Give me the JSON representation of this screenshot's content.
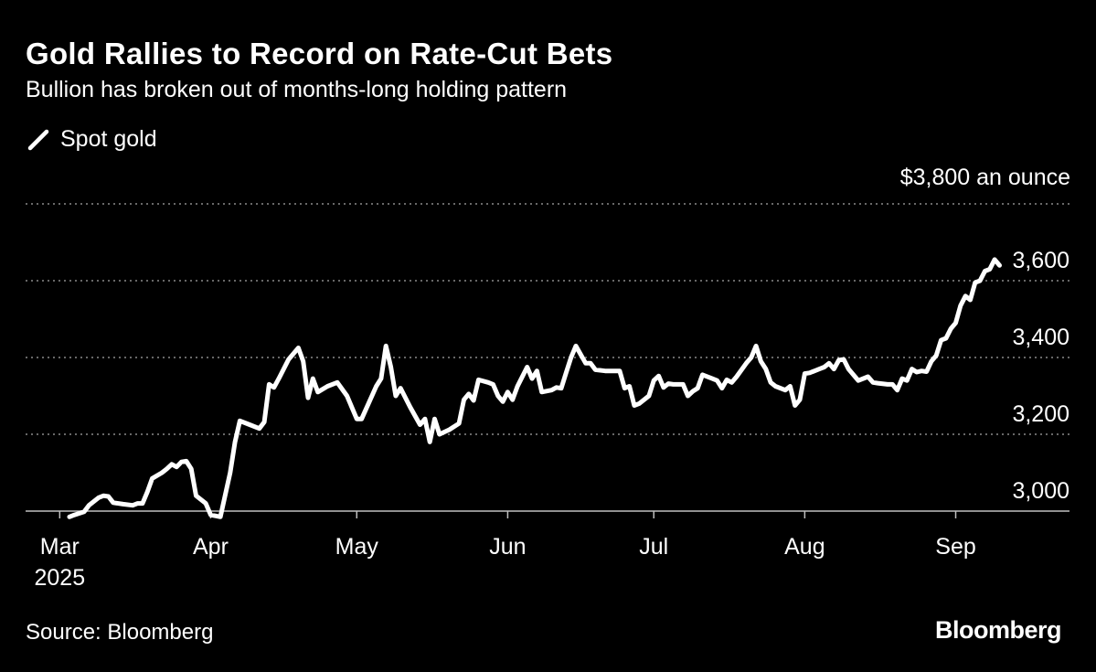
{
  "header": {
    "title": "Gold Rallies to Record on Rate-Cut Bets",
    "subtitle": "Bullion has broken out of months-long holding pattern"
  },
  "legend": {
    "label": "Spot gold",
    "color": "#ffffff"
  },
  "unit_label": "$3,800 an ounce",
  "footer": {
    "source": "Source: Bloomberg",
    "brand": "Bloomberg"
  },
  "colors": {
    "background": "#000000",
    "line": "#ffffff",
    "grid": "#8a8a8a",
    "text": "#ffffff"
  },
  "chart_data": {
    "type": "line",
    "title": "Gold Rallies to Record on Rate-Cut Bets",
    "subtitle": "Bullion has broken out of months-long holding pattern",
    "ylabel": "",
    "xlabel": "",
    "ylim": [
      3000,
      3800
    ],
    "yticks": [
      3000,
      3200,
      3400,
      3600,
      3800
    ],
    "ytick_labels": [
      "3,000",
      "3,200",
      "3,400",
      "3,600",
      "$3,800 an ounce"
    ],
    "y_axis_side": "right",
    "grid": "horizontal dotted",
    "legend_position": "top-left",
    "xlim": [
      "2025-02-28",
      "2025-09-30"
    ],
    "xticks": [
      {
        "date": "2025-03-01",
        "label": "Mar",
        "sublabel": "2025"
      },
      {
        "date": "2025-04-01",
        "label": "Apr"
      },
      {
        "date": "2025-05-01",
        "label": "May"
      },
      {
        "date": "2025-06-01",
        "label": "Jun"
      },
      {
        "date": "2025-07-01",
        "label": "Jul"
      },
      {
        "date": "2025-08-01",
        "label": "Aug"
      },
      {
        "date": "2025-09-01",
        "label": "Sep"
      }
    ],
    "series": [
      {
        "name": "Spot gold",
        "points": [
          [
            "2025-03-03",
            2985
          ],
          [
            "2025-03-04",
            2990
          ],
          [
            "2025-03-06",
            2998
          ],
          [
            "2025-03-07",
            3015
          ],
          [
            "2025-03-09",
            3035
          ],
          [
            "2025-03-10",
            3040
          ],
          [
            "2025-03-11",
            3038
          ],
          [
            "2025-03-12",
            3022
          ],
          [
            "2025-03-14",
            3018
          ],
          [
            "2025-03-16",
            3015
          ],
          [
            "2025-03-17",
            3020
          ],
          [
            "2025-03-18",
            3020
          ],
          [
            "2025-03-19",
            3050
          ],
          [
            "2025-03-20",
            3085
          ],
          [
            "2025-03-22",
            3100
          ],
          [
            "2025-03-23",
            3110
          ],
          [
            "2025-03-24",
            3122
          ],
          [
            "2025-03-25",
            3115
          ],
          [
            "2025-03-26",
            3128
          ],
          [
            "2025-03-27",
            3130
          ],
          [
            "2025-03-28",
            3110
          ],
          [
            "2025-03-29",
            3040
          ],
          [
            "2025-03-31",
            3020
          ],
          [
            "2025-04-01",
            2990
          ],
          [
            "2025-04-03",
            2985
          ],
          [
            "2025-04-05",
            3100
          ],
          [
            "2025-04-06",
            3180
          ],
          [
            "2025-04-07",
            3235
          ],
          [
            "2025-04-09",
            3225
          ],
          [
            "2025-04-11",
            3215
          ],
          [
            "2025-04-12",
            3232
          ],
          [
            "2025-04-13",
            3330
          ],
          [
            "2025-04-14",
            3322
          ],
          [
            "2025-04-15",
            3345
          ],
          [
            "2025-04-17",
            3395
          ],
          [
            "2025-04-19",
            3425
          ],
          [
            "2025-04-20",
            3390
          ],
          [
            "2025-04-21",
            3295
          ],
          [
            "2025-04-22",
            3345
          ],
          [
            "2025-04-23",
            3310
          ],
          [
            "2025-04-25",
            3325
          ],
          [
            "2025-04-27",
            3335
          ],
          [
            "2025-04-29",
            3300
          ],
          [
            "2025-05-01",
            3240
          ],
          [
            "2025-05-02",
            3240
          ],
          [
            "2025-05-05",
            3325
          ],
          [
            "2025-05-06",
            3345
          ],
          [
            "2025-05-07",
            3430
          ],
          [
            "2025-05-08",
            3375
          ],
          [
            "2025-05-09",
            3300
          ],
          [
            "2025-05-10",
            3320
          ],
          [
            "2025-05-12",
            3270
          ],
          [
            "2025-05-14",
            3225
          ],
          [
            "2025-05-15",
            3240
          ],
          [
            "2025-05-16",
            3180
          ],
          [
            "2025-05-17",
            3240
          ],
          [
            "2025-05-18",
            3200
          ],
          [
            "2025-05-20",
            3212
          ],
          [
            "2025-05-22",
            3228
          ],
          [
            "2025-05-23",
            3290
          ],
          [
            "2025-05-24",
            3305
          ],
          [
            "2025-05-25",
            3288
          ],
          [
            "2025-05-26",
            3342
          ],
          [
            "2025-05-28",
            3335
          ],
          [
            "2025-05-29",
            3330
          ],
          [
            "2025-05-30",
            3300
          ],
          [
            "2025-05-31",
            3285
          ],
          [
            "2025-06-01",
            3310
          ],
          [
            "2025-06-02",
            3290
          ],
          [
            "2025-06-03",
            3325
          ],
          [
            "2025-06-05",
            3375
          ],
          [
            "2025-06-06",
            3345
          ],
          [
            "2025-06-07",
            3365
          ],
          [
            "2025-06-08",
            3310
          ],
          [
            "2025-06-10",
            3315
          ],
          [
            "2025-06-11",
            3322
          ],
          [
            "2025-06-12",
            3320
          ],
          [
            "2025-06-13",
            3360
          ],
          [
            "2025-06-14",
            3400
          ],
          [
            "2025-06-15",
            3430
          ],
          [
            "2025-06-17",
            3385
          ],
          [
            "2025-06-18",
            3385
          ],
          [
            "2025-06-19",
            3368
          ],
          [
            "2025-06-21",
            3365
          ],
          [
            "2025-06-23",
            3365
          ],
          [
            "2025-06-24",
            3365
          ],
          [
            "2025-06-25",
            3320
          ],
          [
            "2025-06-26",
            3325
          ],
          [
            "2025-06-27",
            3275
          ],
          [
            "2025-06-28",
            3280
          ],
          [
            "2025-06-30",
            3300
          ],
          [
            "2025-07-01",
            3340
          ],
          [
            "2025-07-02",
            3352
          ],
          [
            "2025-07-03",
            3322
          ],
          [
            "2025-07-04",
            3332
          ],
          [
            "2025-07-05",
            3330
          ],
          [
            "2025-07-07",
            3330
          ],
          [
            "2025-07-08",
            3300
          ],
          [
            "2025-07-09",
            3312
          ],
          [
            "2025-07-10",
            3320
          ],
          [
            "2025-07-11",
            3355
          ],
          [
            "2025-07-13",
            3345
          ],
          [
            "2025-07-14",
            3340
          ],
          [
            "2025-07-15",
            3320
          ],
          [
            "2025-07-16",
            3342
          ],
          [
            "2025-07-17",
            3335
          ],
          [
            "2025-07-18",
            3350
          ],
          [
            "2025-07-20",
            3385
          ],
          [
            "2025-07-21",
            3400
          ],
          [
            "2025-07-22",
            3430
          ],
          [
            "2025-07-23",
            3390
          ],
          [
            "2025-07-24",
            3370
          ],
          [
            "2025-07-25",
            3335
          ],
          [
            "2025-07-26",
            3325
          ],
          [
            "2025-07-28",
            3315
          ],
          [
            "2025-07-29",
            3325
          ],
          [
            "2025-07-30",
            3275
          ],
          [
            "2025-07-31",
            3290
          ],
          [
            "2025-08-01",
            3358
          ],
          [
            "2025-08-02",
            3360
          ],
          [
            "2025-08-04",
            3370
          ],
          [
            "2025-08-05",
            3375
          ],
          [
            "2025-08-06",
            3385
          ],
          [
            "2025-08-07",
            3370
          ],
          [
            "2025-08-08",
            3393
          ],
          [
            "2025-08-09",
            3395
          ],
          [
            "2025-08-10",
            3370
          ],
          [
            "2025-08-12",
            3340
          ],
          [
            "2025-08-14",
            3350
          ],
          [
            "2025-08-15",
            3335
          ],
          [
            "2025-08-16",
            3333
          ],
          [
            "2025-08-18",
            3330
          ],
          [
            "2025-08-19",
            3330
          ],
          [
            "2025-08-20",
            3315
          ],
          [
            "2025-08-21",
            3345
          ],
          [
            "2025-08-22",
            3340
          ],
          [
            "2025-08-23",
            3370
          ],
          [
            "2025-08-24",
            3362
          ],
          [
            "2025-08-25",
            3365
          ],
          [
            "2025-08-26",
            3363
          ],
          [
            "2025-08-27",
            3390
          ],
          [
            "2025-08-28",
            3405
          ],
          [
            "2025-08-29",
            3445
          ],
          [
            "2025-08-30",
            3450
          ],
          [
            "2025-08-31",
            3475
          ],
          [
            "2025-09-01",
            3490
          ],
          [
            "2025-09-02",
            3535
          ],
          [
            "2025-09-03",
            3560
          ],
          [
            "2025-09-04",
            3550
          ],
          [
            "2025-09-05",
            3595
          ],
          [
            "2025-09-06",
            3600
          ],
          [
            "2025-09-07",
            3625
          ],
          [
            "2025-09-08",
            3630
          ],
          [
            "2025-09-09",
            3655
          ],
          [
            "2025-09-10",
            3640
          ]
        ]
      }
    ]
  }
}
